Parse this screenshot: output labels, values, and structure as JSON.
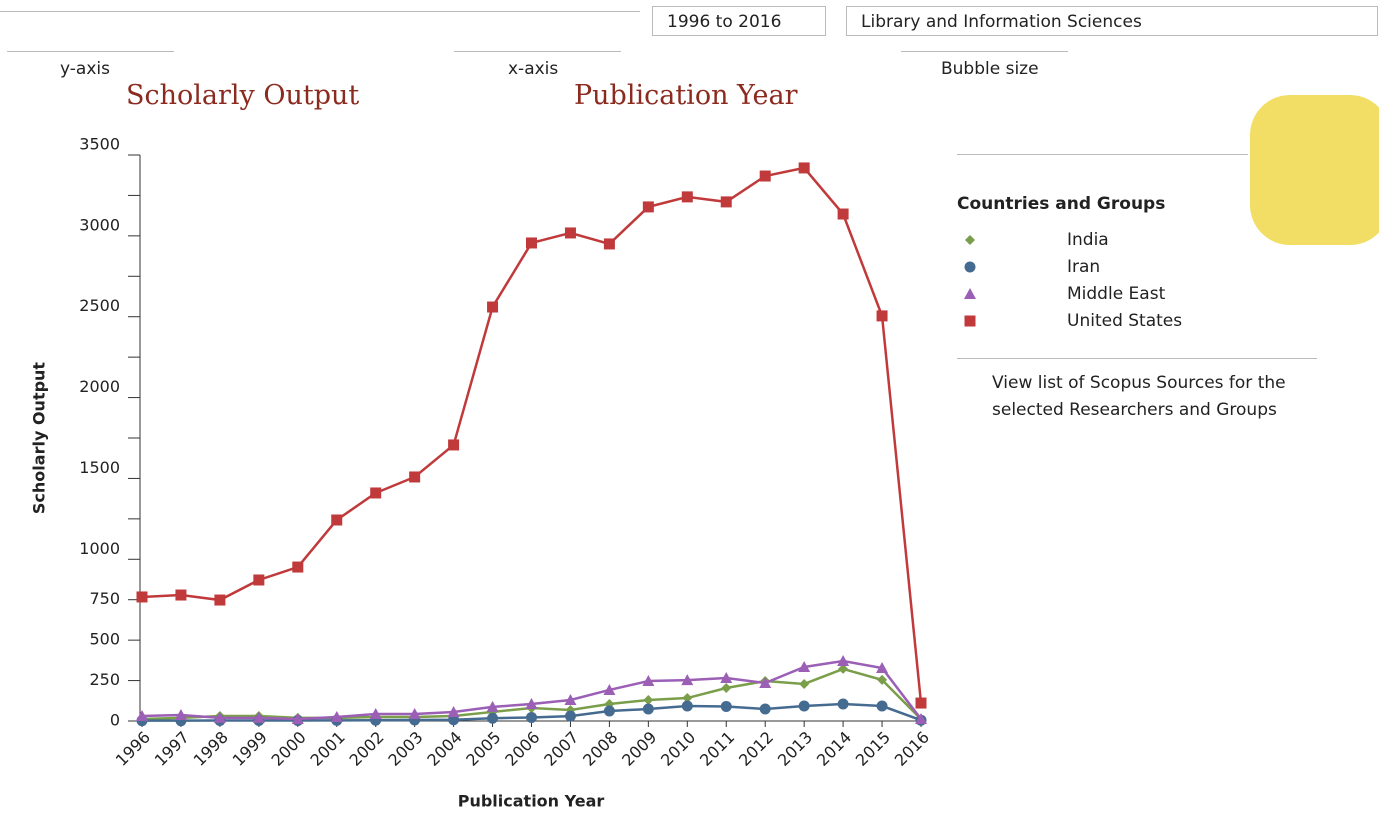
{
  "controls": {
    "range": "1996 to 2016",
    "subject": "Library and Information Sciences",
    "y_axis_label": "y-axis",
    "y_axis_value": "Scholarly Output",
    "x_axis_label": "x-axis",
    "x_axis_value": "Publication Year",
    "bubble_label": "Bubble size"
  },
  "legend_panel": {
    "title": "Countries and Groups",
    "link": "View list of Scopus Sources for the selected Researchers and Groups"
  },
  "chart_data": {
    "type": "line",
    "x_label": "Publication Year",
    "y_label": "Scholarly Output",
    "categories": [
      "1996",
      "1997",
      "1998",
      "1999",
      "2000",
      "2001",
      "2002",
      "2003",
      "2004",
      "2005",
      "2006",
      "2007",
      "2008",
      "2009",
      "2010",
      "2011",
      "2012",
      "2013",
      "2014",
      "2015",
      "2016"
    ],
    "ylim": [
      0,
      3500
    ],
    "yticks": [
      0,
      250,
      500,
      750,
      1000,
      1500,
      2000,
      2500,
      3000,
      3500
    ],
    "yticks_minor": [
      1250,
      1750,
      2250,
      2750,
      3250
    ],
    "series": [
      {
        "name": "India",
        "color": "#7a9e4a",
        "marker": "diamond",
        "values": [
          12,
          19,
          31,
          31,
          19,
          19,
          25,
          25,
          31,
          56,
          80,
          68,
          105,
          130,
          142,
          204,
          247,
          229,
          322,
          254,
          12
        ]
      },
      {
        "name": "Iran",
        "color": "#456b91",
        "marker": "circle",
        "values": [
          2,
          2,
          3,
          3,
          3,
          4,
          5,
          6,
          8,
          17,
          22,
          30,
          62,
          74,
          93,
          90,
          74,
          93,
          105,
          93,
          5
        ]
      },
      {
        "name": "Middle East",
        "color": "#9b5fb5",
        "marker": "triangle",
        "values": [
          31,
          37,
          19,
          19,
          12,
          25,
          43,
          43,
          56,
          87,
          105,
          130,
          192,
          247,
          253,
          266,
          235,
          334,
          371,
          328,
          12
        ]
      },
      {
        "name": "United States",
        "color": "#c0393b",
        "marker": "square",
        "values": [
          767,
          779,
          748,
          872,
          952,
          1243,
          1410,
          1509,
          1707,
          2560,
          2956,
          3018,
          2950,
          3179,
          3241,
          3210,
          3370,
          3420,
          3135,
          2505,
          111
        ]
      }
    ]
  }
}
